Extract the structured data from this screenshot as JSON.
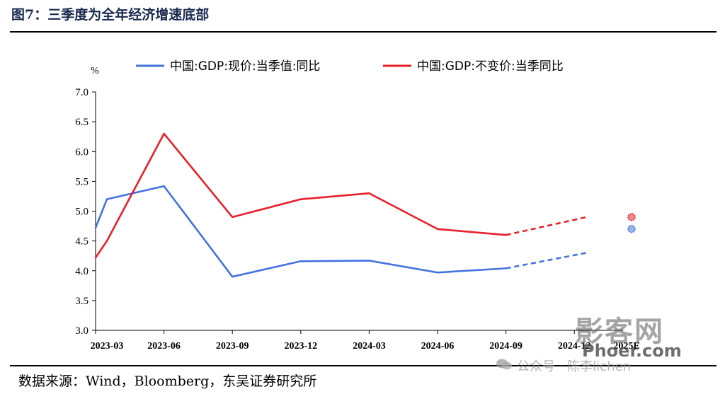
{
  "figure": {
    "title": "图7：三季度为全年经济增速底部",
    "source": "数据来源：Wind，Bloomberg，东吴证券研究所"
  },
  "watermark": {
    "logo_text": "影客网",
    "site": "Phoer.com",
    "account": "公众号 · 陈李lichen"
  },
  "chart_data": {
    "type": "line",
    "ylabel": "%",
    "ylim": [
      3.0,
      7.0
    ],
    "yticks": [
      "3.0",
      "3.5",
      "4.0",
      "4.5",
      "5.0",
      "5.5",
      "6.0",
      "6.5",
      "7.0"
    ],
    "categories": [
      "2023-03",
      "2023-06",
      "2023-09",
      "2023-12",
      "2024-03",
      "2024-06",
      "2024-09",
      "2024-12",
      "2025E"
    ],
    "grid": false,
    "legend_position": "top",
    "series": [
      {
        "name": "中国:GDP:现价:当季值:同比",
        "color": "#4472e0",
        "points": [
          {
            "x": "2023-03",
            "y": 4.72
          },
          {
            "x": "2023-03",
            "y": 5.2
          },
          {
            "x": "2023-06",
            "y": 5.42
          },
          {
            "x": "2023-09",
            "y": 3.9
          },
          {
            "x": "2023-12",
            "y": 4.16
          },
          {
            "x": "2024-03",
            "y": 4.17
          },
          {
            "x": "2024-06",
            "y": 3.97
          },
          {
            "x": "2024-09",
            "y": 4.04
          }
        ],
        "forecast": [
          {
            "x": "2024-09",
            "y": 4.04
          },
          {
            "x": "2024-12",
            "y": 4.3
          }
        ],
        "estimate": {
          "x": "2025E",
          "y": 4.7
        }
      },
      {
        "name": "中国:GDP:不变价:当季同比",
        "color": "#e8202a",
        "points": [
          {
            "x": "2023-03",
            "y": 4.22
          },
          {
            "x": "2023-03",
            "y": 4.5
          },
          {
            "x": "2023-06",
            "y": 6.3
          },
          {
            "x": "2023-09",
            "y": 4.9
          },
          {
            "x": "2023-12",
            "y": 5.2
          },
          {
            "x": "2024-03",
            "y": 5.3
          },
          {
            "x": "2024-06",
            "y": 4.7
          },
          {
            "x": "2024-09",
            "y": 4.6
          }
        ],
        "forecast": [
          {
            "x": "2024-09",
            "y": 4.6
          },
          {
            "x": "2024-12",
            "y": 4.9
          }
        ],
        "estimate": {
          "x": "2025E",
          "y": 4.9
        }
      }
    ]
  }
}
